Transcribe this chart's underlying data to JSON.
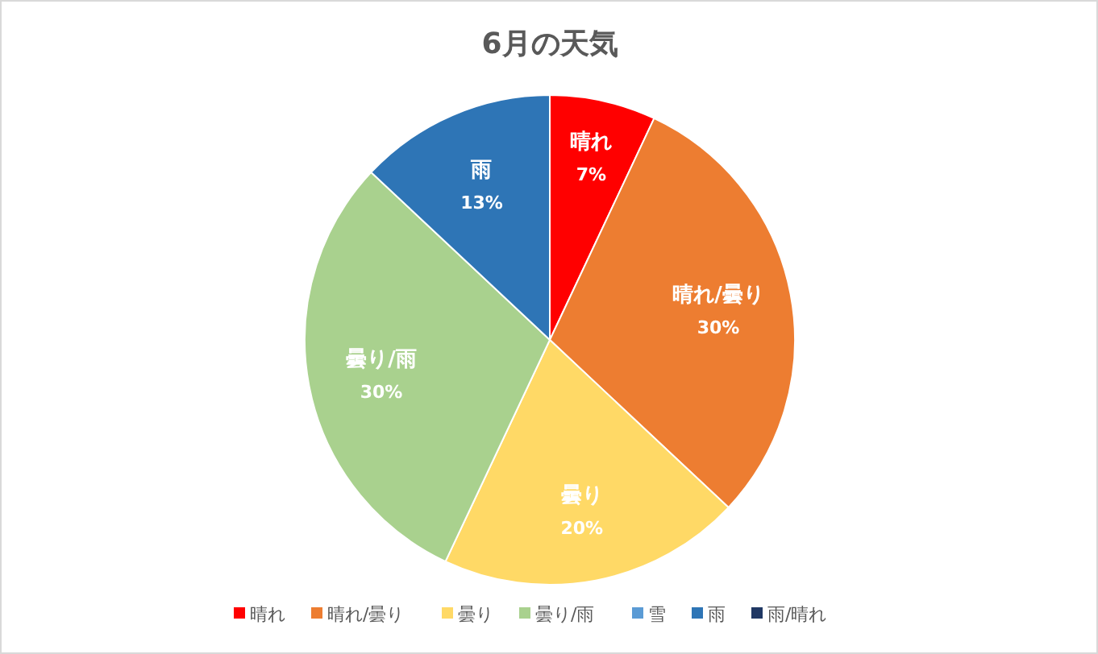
{
  "chart_data": {
    "type": "pie",
    "title": "6月の天気",
    "categories": [
      "晴れ",
      "晴れ/曇り",
      "曇り",
      "曇り/雨",
      "雪",
      "雨",
      "雨/晴れ"
    ],
    "values": [
      7,
      30,
      20,
      30,
      0,
      13,
      0
    ],
    "colors": [
      "#ff0000",
      "#ed7d31",
      "#ffd966",
      "#a9d18e",
      "#5b9bd5",
      "#2e75b6",
      "#203864"
    ],
    "value_labels": [
      "7%",
      "30%",
      "20%",
      "30%",
      null,
      "13%",
      null
    ],
    "legend": "bottom"
  }
}
